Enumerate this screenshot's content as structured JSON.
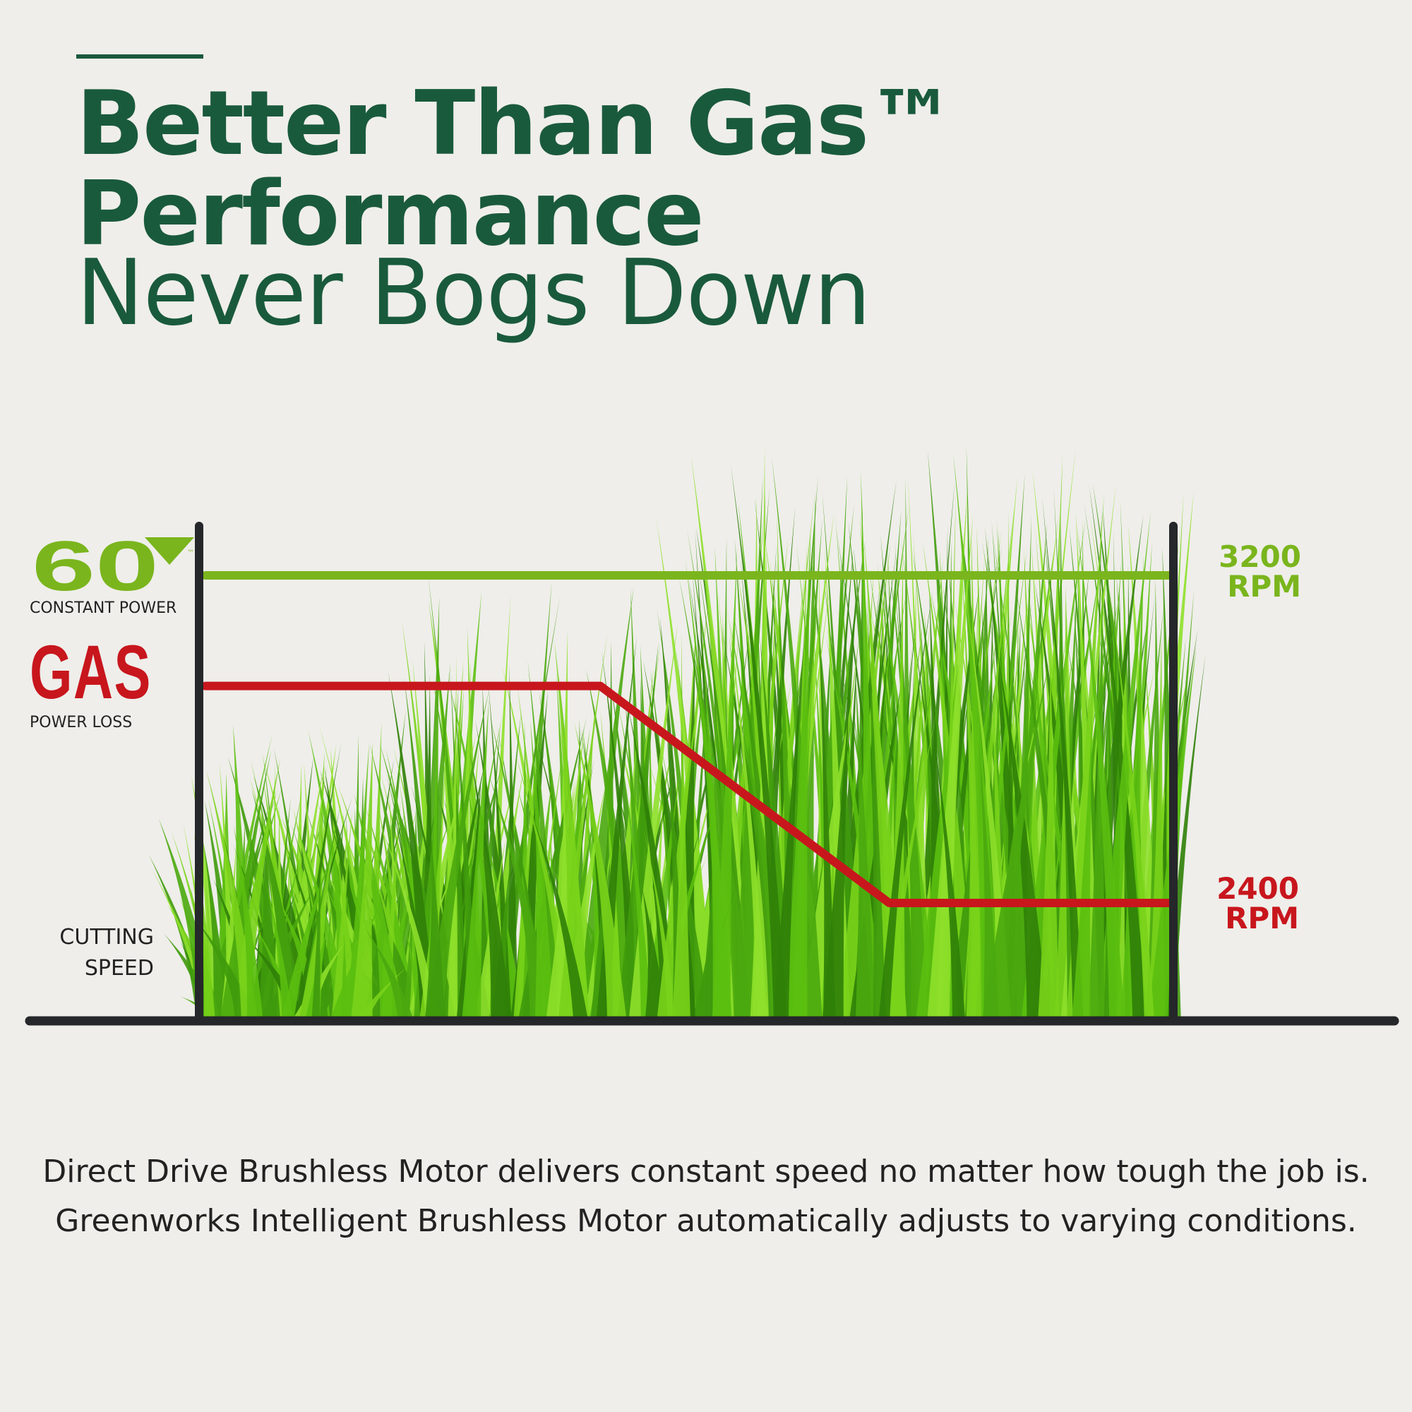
{
  "header": {
    "line1": "Better Than Gas™",
    "line2": "Performance",
    "line3": "Never Bogs Down"
  },
  "legend": {
    "logo_text": "60V",
    "logo_tm": "™",
    "constant_power": "CONSTANT POWER",
    "gas": "GAS",
    "power_loss": "POWER LOSS"
  },
  "axis_label": {
    "line1": "CUTTING",
    "line2": "SPEED"
  },
  "colors": {
    "brand_green": "#1a5a3c",
    "electric": "#7ab51d",
    "gas": "#c8161d",
    "axis": "#25272a",
    "background": "#efeeea"
  },
  "chart_data": {
    "type": "line",
    "ylabel": "CUTTING SPEED",
    "ylim": [
      2200,
      3400
    ],
    "xlim": [
      0,
      100
    ],
    "grid": false,
    "background": "grass illustration",
    "series": [
      {
        "name": "60V CONSTANT POWER",
        "color": "#7ab51d",
        "x": [
          0,
          100
        ],
        "y": [
          3200,
          3200
        ],
        "end_label": [
          "3200",
          "RPM"
        ]
      },
      {
        "name": "GAS POWER LOSS",
        "color": "#c8161d",
        "x": [
          0,
          41,
          71,
          100
        ],
        "y": [
          2930,
          2930,
          2400,
          2400
        ],
        "end_label": [
          "2400",
          "RPM"
        ]
      }
    ]
  },
  "body": {
    "text": "Direct Drive Brushless Motor delivers constant speed no matter how tough the job is. Greenworks Intelligent Brushless Motor automatically adjusts to varying conditions."
  }
}
